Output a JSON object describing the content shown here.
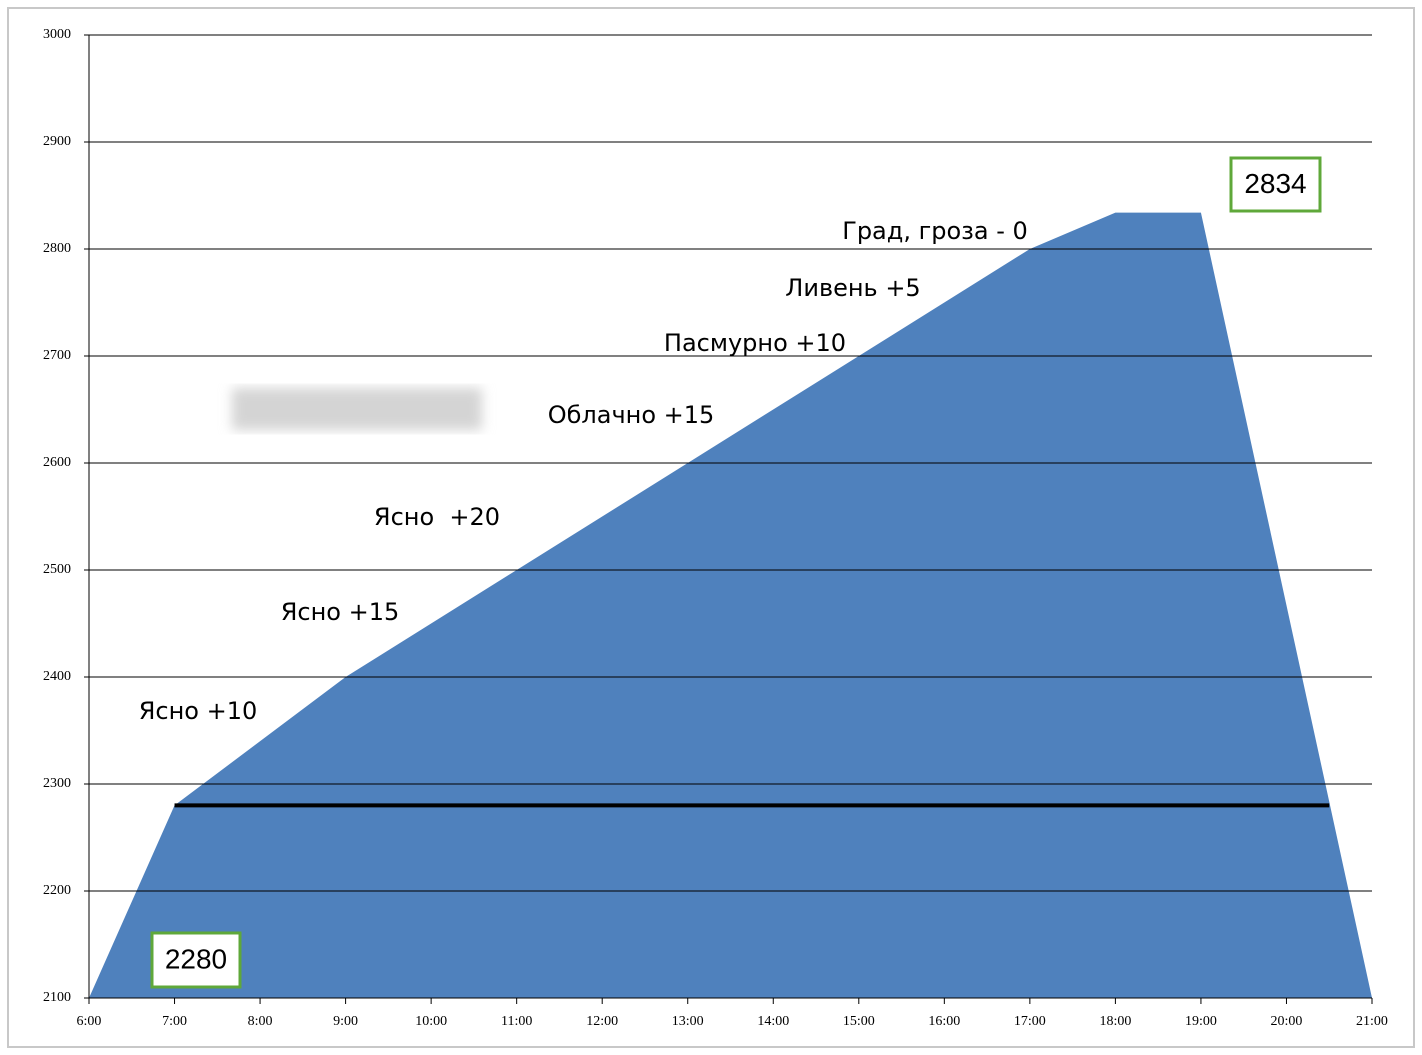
{
  "chart_data": {
    "type": "area",
    "series": [
      {
        "color": "#4f81bd",
        "x": [
          6,
          7,
          9,
          11,
          13,
          15,
          17,
          18,
          19,
          21
        ],
        "values": [
          2100,
          2280,
          2400,
          2500,
          2600,
          2700,
          2800,
          2834,
          2834,
          2100
        ]
      },
      {
        "color": "#000000",
        "line": true,
        "x": [
          7,
          20.5
        ],
        "values": [
          2280,
          2280
        ]
      }
    ],
    "xlim": [
      6,
      21
    ],
    "xticks": [
      {
        "value": 6,
        "label": "6:00"
      },
      {
        "value": 7,
        "label": "7:00"
      },
      {
        "value": 8,
        "label": "8:00"
      },
      {
        "value": 9,
        "label": "9:00"
      },
      {
        "value": 10,
        "label": "10:00"
      },
      {
        "value": 11,
        "label": "11:00"
      },
      {
        "value": 12,
        "label": "12:00"
      },
      {
        "value": 13,
        "label": "13:00"
      },
      {
        "value": 14,
        "label": "14:00"
      },
      {
        "value": 15,
        "label": "15:00"
      },
      {
        "value": 16,
        "label": "16:00"
      },
      {
        "value": 17,
        "label": "17:00"
      },
      {
        "value": 18,
        "label": "18:00"
      },
      {
        "value": 19,
        "label": "19:00"
      },
      {
        "value": 20,
        "label": "20:00"
      },
      {
        "value": 21,
        "label": "21:00"
      }
    ],
    "ylim": [
      2100,
      3000
    ],
    "yticks": [
      2100,
      2200,
      2300,
      2400,
      2500,
      2600,
      2700,
      2800,
      2900,
      3000
    ],
    "grid": true,
    "annotations": [
      "Ясно +10",
      "Ясно +15",
      "Ясно  +20",
      "Облачно +15",
      "Пасмурно +10",
      "Ливень +5",
      "Град, гроза - 0"
    ],
    "boxed_labels": [
      "2280",
      "2834"
    ]
  }
}
